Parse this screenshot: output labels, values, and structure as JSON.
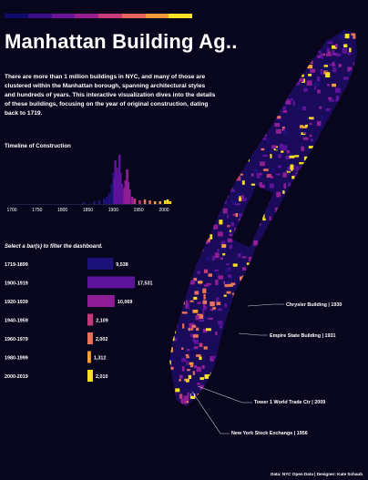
{
  "header": {
    "stripe_colors": [
      "#0f0a6e",
      "#3b0e8a",
      "#6a1597",
      "#9a1f8e",
      "#c63c78",
      "#e4685a",
      "#f59a3a",
      "#f7e225"
    ],
    "title": "Manhattan Building Ag..",
    "intro": "There are more than 1 million buildings in NYC, and many of those are clustered within the Manhattan borough, spanning architectural styles and hundreds of years. This interactive visualization dives into the details of these buildings, focusing on the year of original construction, dating back to 1719."
  },
  "timeline": {
    "label": "Timeline of Construction",
    "x_ticks": [
      "1700",
      "1750",
      "1800",
      "1850",
      "1900",
      "1950",
      "2000"
    ],
    "tick_values": [
      1700,
      1750,
      1800,
      1850,
      1900,
      1950,
      2000
    ]
  },
  "filter": {
    "hint": "Select a bar(s) to filter the dashboard."
  },
  "chart_data": {
    "type": "bar",
    "categories": [
      "1719-1899",
      "1900-1919",
      "1920-1939",
      "1940-1959",
      "1960-1979",
      "1980-1999",
      "2000-2019"
    ],
    "values": [
      9538,
      17531,
      10069,
      2109,
      2002,
      1312,
      2010
    ],
    "value_labels": [
      "9,538",
      "17,531",
      "10,069",
      "2,109",
      "2,002",
      "1,312",
      "2,010"
    ],
    "colors": [
      "#1b1178",
      "#5c139a",
      "#8e1d96",
      "#c13a7a",
      "#e8725a",
      "#f6a03a",
      "#f7e11f"
    ],
    "xlim": [
      0,
      17531
    ]
  },
  "annotations": [
    "Chrysler Building | 1930",
    "Empire State Building | 1931",
    "Tower 1 World Trade Ctr | 2009",
    "New York Stock Exchange | 1956"
  ],
  "footer": "Data: NYC Open Data | Designer: Kate Schaub"
}
